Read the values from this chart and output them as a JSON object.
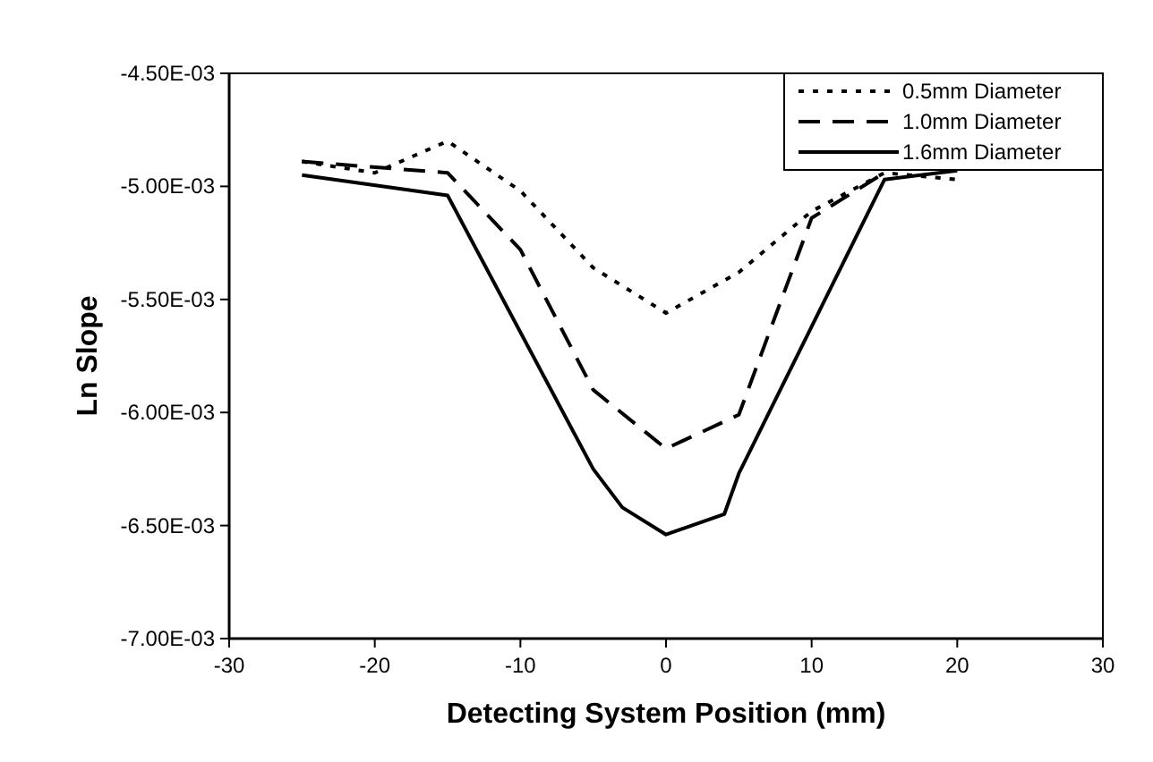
{
  "chart_data": {
    "type": "line",
    "xlabel": "Detecting System Position (mm)",
    "ylabel": "Ln Slope",
    "xlim": [
      -30,
      30
    ],
    "xticks": [
      -30,
      -20,
      -10,
      0,
      10,
      20,
      30
    ],
    "ylim": [
      -0.007,
      -0.0045
    ],
    "yticks": [
      {
        "value": -0.007,
        "label": "-7.00E-03"
      },
      {
        "value": -0.0065,
        "label": "-6.50E-03"
      },
      {
        "value": -0.006,
        "label": "-6.00E-03"
      },
      {
        "value": -0.0055,
        "label": "-5.50E-03"
      },
      {
        "value": -0.005,
        "label": "-5.00E-03"
      },
      {
        "value": -0.0045,
        "label": "-4.50E-03"
      }
    ],
    "grid": false,
    "legend": "top right",
    "series": [
      {
        "name": "0.5mm Diameter",
        "color": "#000000",
        "line_style": "dotted",
        "x": [
          -25,
          -20,
          -15,
          -10,
          -5,
          0,
          5,
          10,
          15,
          20
        ],
        "values": [
          -0.00489,
          -0.00494,
          -0.0048,
          -0.00502,
          -0.00536,
          -0.00556,
          -0.00538,
          -0.00511,
          -0.00494,
          -0.00497
        ]
      },
      {
        "name": "1.0mm Diameter",
        "color": "#000000",
        "line_style": "dashed",
        "x": [
          -25,
          -15,
          -10,
          -5,
          0,
          5,
          10,
          15
        ],
        "values": [
          -0.00489,
          -0.00494,
          -0.00528,
          -0.0059,
          -0.00616,
          -0.00601,
          -0.00514,
          -0.00494
        ]
      },
      {
        "name": "1.6mm Diameter",
        "color": "#000000",
        "line_style": "solid",
        "x": [
          -25,
          -15,
          -5,
          -3,
          0,
          4,
          5,
          15,
          20
        ],
        "values": [
          -0.00495,
          -0.00504,
          -0.00625,
          -0.00642,
          -0.00654,
          -0.00645,
          -0.00627,
          -0.00497,
          -0.00493
        ]
      }
    ]
  }
}
